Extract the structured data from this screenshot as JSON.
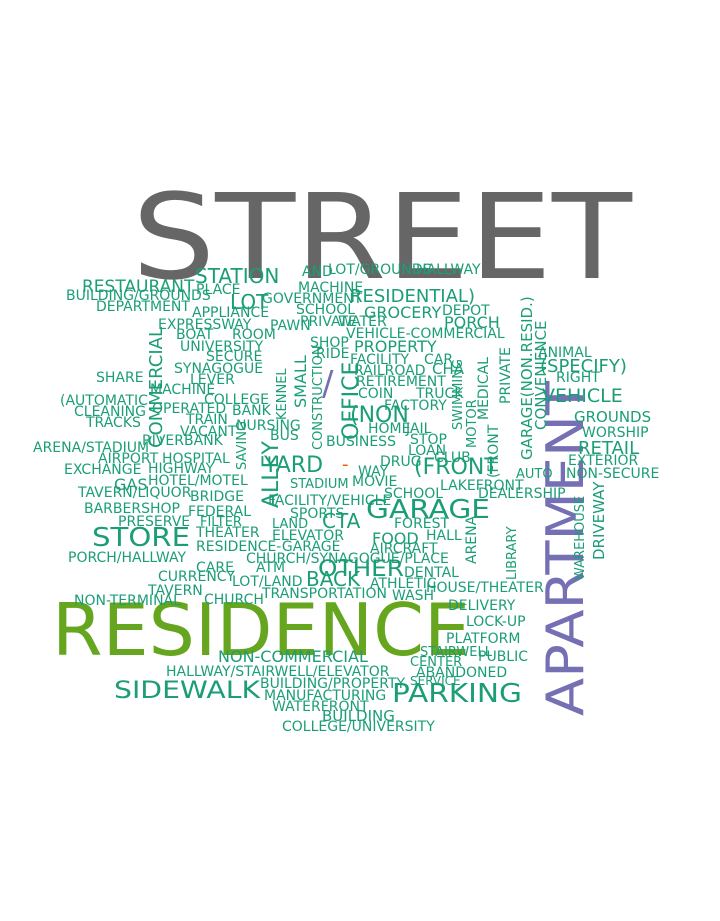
{
  "colors": {
    "background": "#ffffff",
    "gray": "#666666",
    "green": "#66a61e",
    "purple": "#7570b3",
    "orange": "#d95f02",
    "teal": "#1b9e77"
  },
  "words": {
    "street": "STREET",
    "residence": "RESIDENCE",
    "apartment": "APARTMENT",
    "parking": "PARKING",
    "sidewalk": "SIDEWALK",
    "other": "OTHER",
    "store": "STORE",
    "garage": "GARAGE",
    "restaurant": "RESTAURANT",
    "station": "STATION",
    "lot": "LOT",
    "residential": "RESIDENTIAL)",
    "vehicle": "VEHICLE",
    "retail": "RETAIL",
    "specify": "(SPECIFY)",
    "commercial": "COMMERCIAL",
    "noncommercial": "NON-COMMERCIAL",
    "back": "BACK",
    "yard": "YARD",
    "alley": "ALLEY",
    "front": "(FRONT",
    "slash": "/",
    "dash": "-",
    "office": "OFFICE",
    "non": "(NON",
    "porch": "PORCH",
    "grocery": "GROCERY",
    "property": "PROPERTY",
    "cta": "CTA",
    "food": "FOOD",
    "gas": "GAS",
    "building": "BUILDING",
    "grounds": "GROUNDS",
    "worship": "WORSHIP",
    "driveway": "DRIVEWAY",
    "convenience": "CONVENIENCE",
    "garage_non_res": "GARAGE(NON.RESID.)",
    "public": "PUBLIC",
    "platform": "PLATFORM",
    "delivery": "DELIVERY",
    "lockup": "LOCK-UP",
    "abandoned": "ABANDONED",
    "center": "CENTER",
    "stairwell": "STAIRWELL",
    "house_theater": "HOUSE/THEATER",
    "movie": "MOVIE",
    "wash": "WASH",
    "car": "CAR",
    "dental": "DENTAL",
    "athletic": "ATHLETIC",
    "club": "CLUB",
    "lakefront": "LAKEFRONT",
    "waterfront": "WATERFRONT",
    "forest": "FOREST",
    "preserve": "PRESERVE",
    "school": "SCHOOL",
    "dealership": "DEALERSHIP",
    "hall": "HALL",
    "arena": "ARENA",
    "library": "LIBRARY",
    "tavern": "TAVERN",
    "liquor": "TAVERN/LIQUOR",
    "barbershop": "BARBERSHOP",
    "federal": "FEDERAL",
    "theater": "THEATER",
    "elevator": "ELEVATOR",
    "residence_garage": "RESIDENCE-GARAGE",
    "aircraft": "AIRCRAFT",
    "porch_hallway": "PORCH/HALLWAY",
    "church_synagogue": "CHURCH/SYNAGOGUE/PLACE",
    "care": "CARE",
    "atm": "ATM",
    "currency": "CURRENCY",
    "lot_land": "LOT/LAND",
    "church": "CHURCH",
    "non_terminal": "NON-TERMINAL",
    "transportation": "TRANSPORTATION",
    "hallway_stairwell": "HALLWAY/STAIRWELL/ELEVATOR",
    "building_property": "BUILDING/PROPERTY",
    "manufacturing": "MANUFACTURING",
    "college_university": "COLLEGE/UNIVERSITY",
    "service": "SERVICE",
    "building_grounds": "BUILDING/GROUNDS",
    "department": "DEPARTMENT",
    "expressway": "EXPRESSWAY",
    "boat": "BOAT",
    "room": "ROOM",
    "university": "UNIVERSITY",
    "secure": "SECURE",
    "share": "SHARE",
    "synagogue": "SYNAGOGUE",
    "automatic": "(AUTOMATIC",
    "cleaning": "CLEANING",
    "tracks": "TRACKS",
    "arena_stadium": "ARENA/STADIUM",
    "exchange": "EXCHANGE",
    "airport": "AIRPORT",
    "hospital": "HOSPITAL",
    "highway": "HIGHWAY",
    "hotel_motel": "HOTEL/MOTEL",
    "bridge": "BRIDGE",
    "riverbank": "RIVERBANK",
    "vacant": "VACANT",
    "train": "TRAIN",
    "nursing": "NURSING",
    "bank": "BANK",
    "operated": "OPERATED",
    "machine": "MACHINE",
    "lever": "LEVER",
    "roof": "ROOF",
    "college": "COLLEGE",
    "appliance": "APPLIANCE",
    "place": "PLACE",
    "government": "GOVERNMENT",
    "pawn": "PAWN",
    "private": "PRIVATE",
    "shop": "SHOP",
    "ride": "RIDE",
    "retirement": "RETIREMENT",
    "coin": "COIN",
    "factory": "FACTORY",
    "truck": "TRUCK",
    "loan": "LOAN",
    "drug": "DRUG",
    "business": "BUSINESS",
    "home": "HOME",
    "jail": "JAIL",
    "stop": "STOP",
    "depot": "DEPOT",
    "water": "WATER",
    "cha": "CHA",
    "railroad": "RAILROAD",
    "facility": "FACILITY",
    "hallway": "HALLWAY",
    "and": "AND",
    "machine_2": "MACHINE",
    "lot_grounds": "LOT/GROUNDS",
    "animal": "ANIMAL",
    "right": "RIGHT",
    "exterior": "EXTERIOR",
    "non_secure": "NON-SECURE",
    "warehouse": "WAREHOUSE",
    "small": "SMALL",
    "medical": "MEDICAL",
    "auto": "AUTO",
    "way": "WAY",
    "sports": "SPORTS",
    "land": "LAND",
    "facility_vehicle": "FACILITY/VEHICLE",
    "bus": "BUS",
    "vehicle_commercial": "VEHICLE-COMMERCIAL",
    "construction": "CONSTRUCTION",
    "saving": "SAVING",
    "stadium": "STADIUM",
    "filter": "FILTER",
    "kennel": "KENNEL",
    "stairwell_2": "STAIRWELL",
    "swimming": "SWIMMING",
    "motor": "MOTOR"
  }
}
